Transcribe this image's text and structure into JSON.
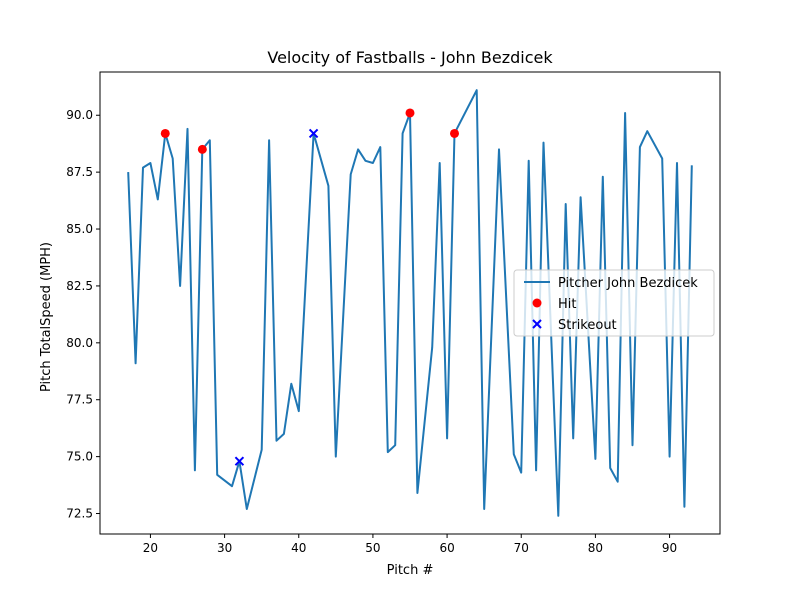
{
  "chart_data": {
    "type": "line",
    "title": "Velocity of Fastballs - John Bezdicek",
    "xlabel": "Pitch #",
    "ylabel": "Pitch TotalSpeed (MPH)",
    "xlim": [
      13.2,
      96.8
    ],
    "ylim": [
      71.6,
      91.9
    ],
    "xticks": [
      20,
      30,
      40,
      50,
      60,
      70,
      80,
      90
    ],
    "yticks": [
      72.5,
      75.0,
      77.5,
      80.0,
      82.5,
      85.0,
      87.5,
      90.0
    ],
    "xtick_labels": [
      "20",
      "30",
      "40",
      "50",
      "60",
      "70",
      "80",
      "90"
    ],
    "ytick_labels": [
      "72.5",
      "75.0",
      "77.5",
      "80.0",
      "82.5",
      "85.0",
      "87.5",
      "90.0"
    ],
    "grid": false,
    "legend_position": "center-right",
    "series": [
      {
        "name": "Pitcher John Bezdicek",
        "kind": "line",
        "color": "#1f77b4",
        "x": [
          17,
          18,
          19,
          20,
          21,
          22,
          23,
          24,
          25,
          26,
          27,
          28,
          29,
          31,
          32,
          33,
          35,
          36,
          37,
          38,
          39,
          40,
          42,
          44,
          45,
          47,
          48,
          49,
          50,
          51,
          52,
          53,
          54,
          55,
          56,
          58,
          59,
          60,
          61,
          64,
          65,
          67,
          69,
          70,
          71,
          72,
          73,
          75,
          76,
          77,
          78,
          80,
          81,
          82,
          83,
          84,
          85,
          86,
          87,
          89,
          90,
          91,
          92,
          93
        ],
        "y": [
          87.5,
          79.1,
          87.7,
          87.9,
          86.3,
          89.2,
          88.1,
          82.5,
          89.4,
          74.4,
          88.5,
          88.9,
          74.2,
          73.7,
          74.8,
          72.7,
          75.3,
          88.9,
          75.7,
          76.0,
          78.2,
          77.0,
          89.2,
          86.9,
          75.0,
          87.4,
          88.5,
          88.0,
          87.9,
          88.6,
          75.2,
          75.5,
          89.2,
          90.1,
          73.4,
          79.8,
          87.9,
          75.8,
          89.2,
          91.1,
          72.7,
          88.5,
          75.1,
          74.3,
          88.0,
          74.4,
          88.8,
          72.4,
          86.1,
          75.8,
          86.4,
          74.9,
          87.3,
          74.5,
          73.9,
          90.1,
          75.5,
          88.6,
          89.3,
          88.1,
          75.0,
          87.9,
          72.8,
          87.8
        ]
      },
      {
        "name": "Hit",
        "kind": "scatter",
        "marker": "o",
        "color": "#ff0000",
        "x": [
          22,
          27,
          55,
          61
        ],
        "y": [
          89.2,
          88.5,
          90.1,
          89.2
        ]
      },
      {
        "name": "Strikeout",
        "kind": "scatter",
        "marker": "x",
        "color": "#0000ff",
        "x": [
          32,
          42
        ],
        "y": [
          74.8,
          89.2
        ]
      }
    ]
  }
}
